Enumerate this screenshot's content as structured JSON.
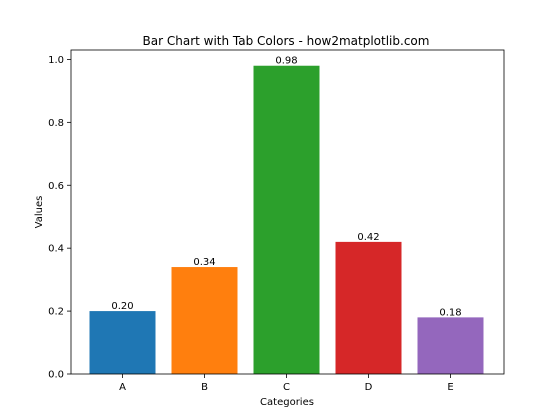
{
  "chart_data": {
    "type": "bar",
    "title": "Bar Chart with Tab Colors - how2matplotlib.com",
    "xlabel": "Categories",
    "ylabel": "Values",
    "categories": [
      "A",
      "B",
      "C",
      "D",
      "E"
    ],
    "values": [
      0.2,
      0.34,
      0.98,
      0.42,
      0.18
    ],
    "value_labels": [
      "0.20",
      "0.34",
      "0.98",
      "0.42",
      "0.18"
    ],
    "colors": [
      "#1f77b4",
      "#ff7f0e",
      "#2ca02c",
      "#d62728",
      "#9467bd"
    ],
    "ylim": [
      0,
      1.03
    ],
    "yticks": [
      0.0,
      0.2,
      0.4,
      0.6,
      0.8,
      1.0
    ],
    "ytick_labels": [
      "0.0",
      "0.2",
      "0.4",
      "0.6",
      "0.8",
      "1.0"
    ],
    "grid": false,
    "legend": false
  }
}
